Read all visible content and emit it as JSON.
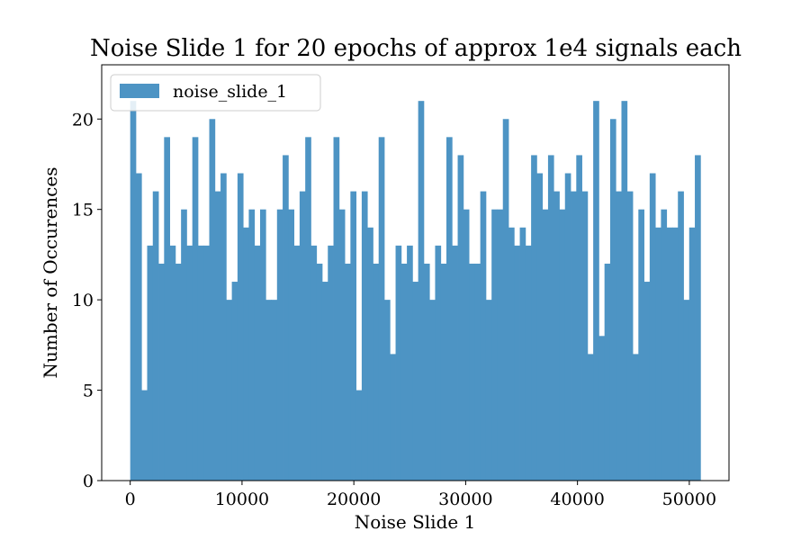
{
  "chart_data": {
    "type": "bar",
    "title": "Noise Slide 1 for 20 epochs of approx 1e4 signals each",
    "xlabel": "Noise Slide 1",
    "ylabel": "Number of Occurences",
    "xlim": [
      -2550,
      53550
    ],
    "ylim": [
      0,
      23
    ],
    "bin_range": [
      0,
      51000
    ],
    "x_ticks": [
      0,
      10000,
      20000,
      30000,
      40000,
      50000
    ],
    "x_tick_labels": [
      "0",
      "10000",
      "20000",
      "30000",
      "40000",
      "50000"
    ],
    "y_ticks": [
      0,
      5,
      10,
      15,
      20
    ],
    "y_tick_labels": [
      "0",
      "5",
      "10",
      "15",
      "20"
    ],
    "grid": false,
    "legend_position": "top-left",
    "bar_color": "#4d94c4",
    "series": [
      {
        "name": "noise_slide_1",
        "values": [
          21,
          17,
          5,
          13,
          16,
          12,
          19,
          13,
          12,
          15,
          13,
          19,
          13,
          13,
          20,
          16,
          17,
          10,
          11,
          17,
          14,
          15,
          13,
          15,
          10,
          10,
          15,
          18,
          15,
          13,
          16,
          19,
          13,
          12,
          11,
          13,
          19,
          15,
          12,
          16,
          5,
          16,
          14,
          12,
          19,
          10,
          7,
          13,
          12,
          13,
          11,
          21,
          12,
          10,
          13,
          12,
          19,
          13,
          18,
          15,
          12,
          12,
          16,
          10,
          15,
          15,
          20,
          14,
          13,
          14,
          13,
          18,
          17,
          15,
          18,
          16,
          15,
          17,
          16,
          18,
          16,
          7,
          21,
          8,
          12,
          20,
          16,
          21,
          16,
          7,
          15,
          11,
          17,
          14,
          15,
          14,
          14,
          16,
          10,
          14,
          18
        ]
      }
    ]
  }
}
